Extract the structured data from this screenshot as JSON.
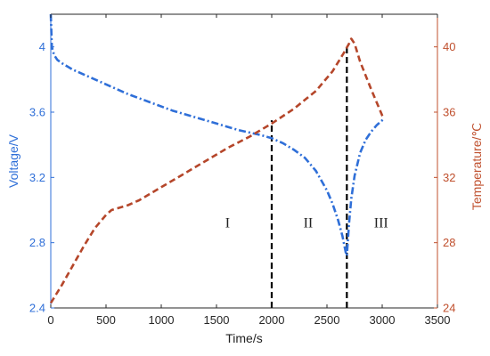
{
  "chart_data": {
    "type": "line",
    "xlabel": "Time/s",
    "ylabel_left": "Voltage/V",
    "ylabel_right": "Temperature/℃",
    "xlim": [
      0,
      3500
    ],
    "ylim_left": [
      2.4,
      4.2
    ],
    "ylim_right": [
      24,
      42
    ],
    "x_ticks": [
      "0",
      "500",
      "1000",
      "1500",
      "2000",
      "2500",
      "3000",
      "3500"
    ],
    "y_left_ticks": [
      "2.4",
      "2.8",
      "3.2",
      "3.6",
      "4"
    ],
    "y_right_ticks": [
      "24",
      "28",
      "32",
      "36",
      "40"
    ],
    "grid": false,
    "colors": {
      "voltage": "#2f6fd8",
      "temperature": "#b5462a",
      "left_axis": "#2f6fd8",
      "right_axis": "#c0502e",
      "divider": "#000000"
    },
    "series": [
      {
        "axis": "left",
        "color": "#2f6fd8",
        "x": [
          0,
          10,
          30,
          60,
          100,
          200,
          300,
          500,
          700,
          900,
          1100,
          1300,
          1500,
          1700,
          1900,
          2000,
          2100,
          2200,
          2300,
          2400,
          2500,
          2550,
          2600,
          2640,
          2670,
          2680,
          2700,
          2720,
          2750,
          2800,
          2850,
          2900,
          2950,
          3000,
          3020
        ],
        "y": [
          4.2,
          4.0,
          3.95,
          3.92,
          3.9,
          3.86,
          3.83,
          3.77,
          3.71,
          3.66,
          3.61,
          3.57,
          3.53,
          3.49,
          3.46,
          3.44,
          3.41,
          3.37,
          3.32,
          3.24,
          3.12,
          3.04,
          2.94,
          2.84,
          2.74,
          2.72,
          2.92,
          3.07,
          3.21,
          3.35,
          3.43,
          3.48,
          3.52,
          3.55,
          3.56
        ]
      },
      {
        "axis": "right",
        "color": "#b5462a",
        "x": [
          0,
          100,
          200,
          300,
          400,
          500,
          550,
          600,
          700,
          800,
          900,
          1000,
          1200,
          1400,
          1600,
          1800,
          2000,
          2200,
          2400,
          2550,
          2650,
          2700,
          2720,
          2750,
          2800,
          2900,
          3000,
          3020
        ],
        "y": [
          24.3,
          25.4,
          26.6,
          27.8,
          28.9,
          29.7,
          30.0,
          30.1,
          30.3,
          30.6,
          31.0,
          31.4,
          32.2,
          33.0,
          33.8,
          34.5,
          35.3,
          36.2,
          37.3,
          38.5,
          39.6,
          40.2,
          40.5,
          40.2,
          39.1,
          37.4,
          35.8,
          35.6
        ]
      }
    ],
    "dividers_x": [
      2000,
      2680
    ],
    "dividers_y": [
      [
        2.4,
        3.55
      ],
      [
        2.4,
        4.02
      ]
    ],
    "regions": [
      {
        "label": "I",
        "x": 1600,
        "y": 2.92
      },
      {
        "label": "II",
        "x": 2330,
        "y": 2.92
      },
      {
        "label": "III",
        "x": 2990,
        "y": 2.92
      }
    ]
  }
}
